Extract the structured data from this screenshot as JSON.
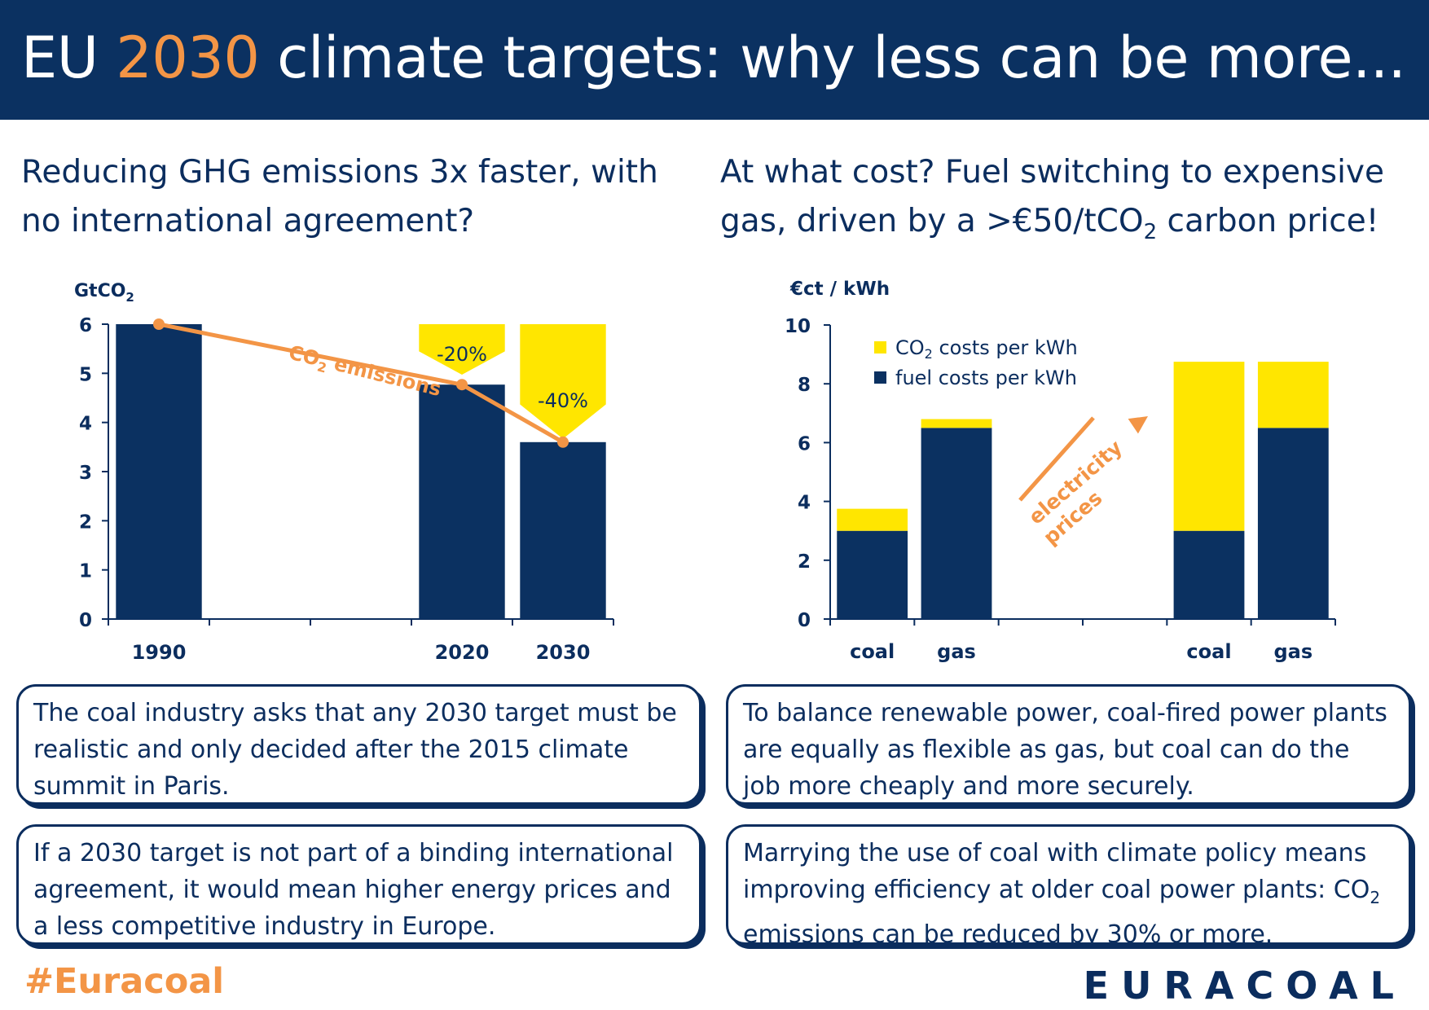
{
  "title": {
    "prefix": "EU ",
    "highlight": "2030",
    "suffix": " climate targets: why less can be more..."
  },
  "left_headline": "Reducing GHG emissions 3x faster, with no international agreement?",
  "right_headline": {
    "text_before": "At what cost? Fuel switching to expensive gas, driven by a >€50/tCO",
    "sub": "2",
    "text_after": " carbon price!"
  },
  "chart_data": [
    {
      "type": "bar",
      "ylabel_main": "GtCO",
      "ylabel_sub": "2",
      "ylim": [
        0,
        6
      ],
      "yticks": [
        "0",
        "1",
        "2",
        "3",
        "4",
        "5",
        "6"
      ],
      "categories": [
        "1990",
        "",
        "",
        "2020",
        "2030"
      ],
      "values": [
        6.0,
        null,
        null,
        4.77,
        3.6
      ],
      "line_series": {
        "label_main": "CO",
        "label_sub": "2",
        "label_rest": " emissions",
        "points": [
          [
            0,
            6.0
          ],
          [
            3,
            4.77
          ],
          [
            4,
            3.6
          ]
        ]
      },
      "reduction_flags": [
        {
          "category_index": 3,
          "label": "-20%"
        },
        {
          "category_index": 4,
          "label": "-40%"
        }
      ],
      "colors": {
        "bar": "#0b3161",
        "line": "#f39546",
        "flag": "#ffe600"
      }
    },
    {
      "type": "bar",
      "stacked": true,
      "ylabel": "€ct / kWh",
      "ylim": [
        0,
        10
      ],
      "yticks": [
        "0",
        "2",
        "4",
        "6",
        "8",
        "10"
      ],
      "categories": [
        "coal",
        "gas",
        "",
        "",
        "coal",
        "gas"
      ],
      "series": [
        {
          "name": "fuel costs per kWh",
          "values": [
            3.0,
            6.5,
            null,
            null,
            3.0,
            6.5
          ]
        },
        {
          "name_main": "CO",
          "name_sub": "2",
          "name_rest": " costs per kWh",
          "values": [
            0.75,
            0.3,
            null,
            null,
            5.75,
            2.25
          ]
        }
      ],
      "annotation": {
        "line1": "electricity",
        "line2": "prices"
      },
      "legend": "top-left",
      "colors": {
        "fuel": "#0b3161",
        "co2": "#ffe600",
        "arrow": "#f39546"
      }
    }
  ],
  "boxes": {
    "top_left": "The coal industry asks that any 2030 target must be realistic and only decided after the 2015 climate summit in Paris.",
    "top_right": "To balance renewable power, coal-fired power plants are equally as flexible as gas, but coal can do the job more cheaply and more securely.",
    "bottom_left": "If a 2030 target is not part of a binding international agreement, it would mean higher energy prices and a less competitive industry in Europe.",
    "bottom_right": {
      "before": "Marrying the use of coal with climate policy means improving efficiency at older coal power plants: CO",
      "sub": "2",
      "after": " emissions can be reduced by 30% or more."
    }
  },
  "footer": {
    "hashtag": "#Euracoal",
    "logo": "EURACOAL"
  }
}
